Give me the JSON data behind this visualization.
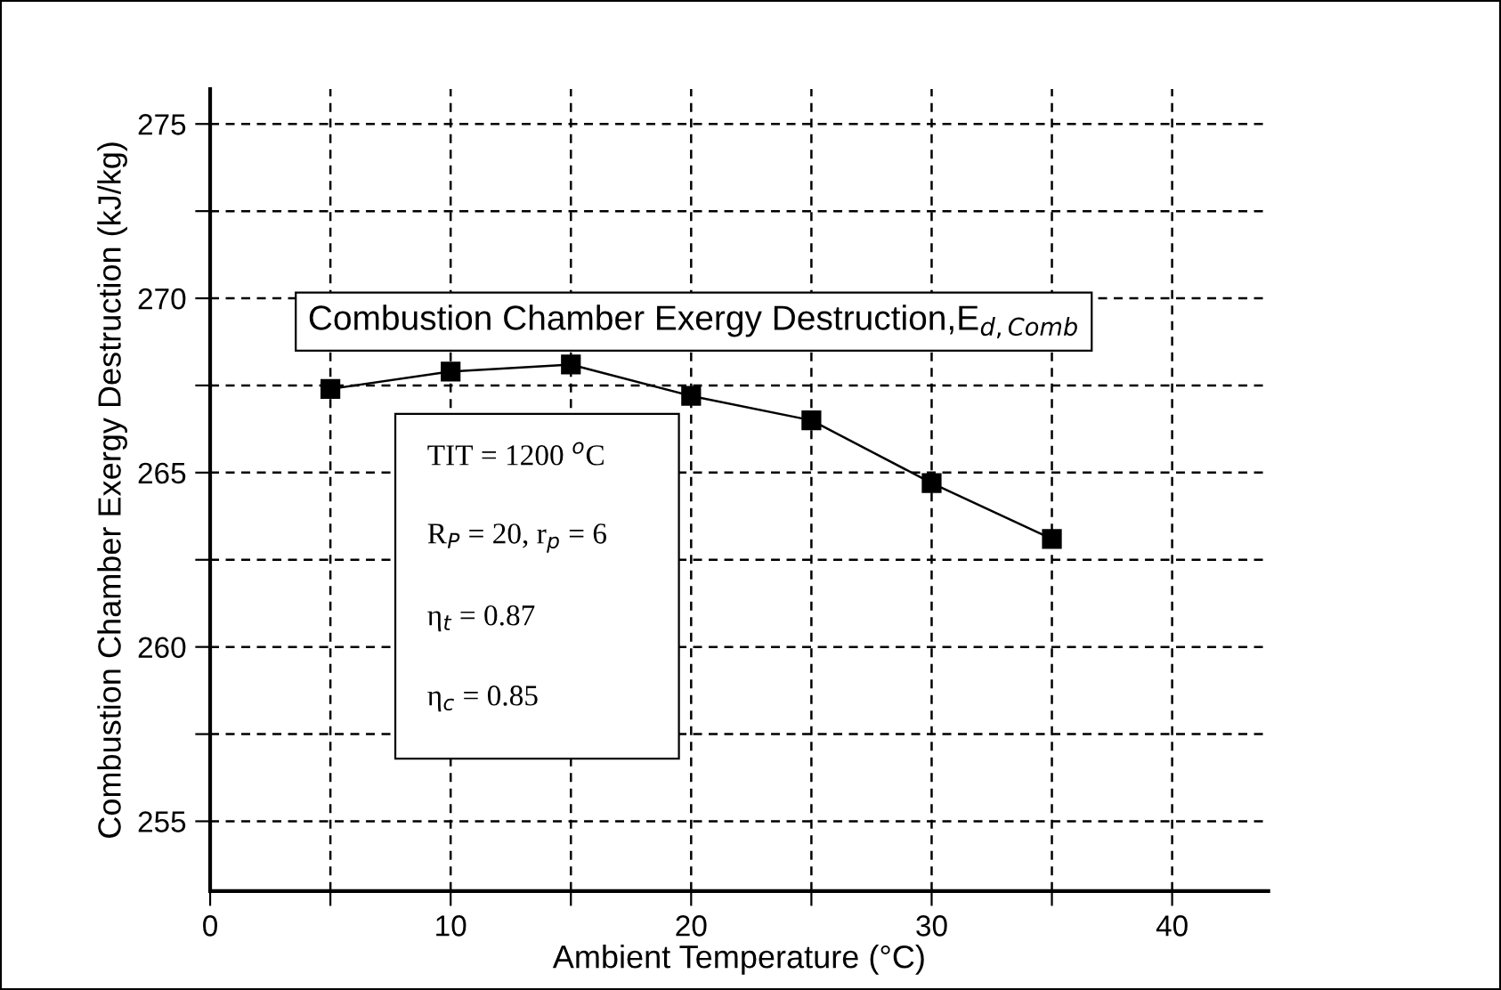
{
  "chart_data": {
    "type": "line",
    "xlabel": "Ambient Temperature (°C)",
    "ylabel": "Combustion Chamber Exergy Destruction (kJ/kg)",
    "x": [
      5,
      10,
      15,
      20,
      25,
      30,
      35
    ],
    "series": [
      {
        "color": "#000000",
        "values": [
          267.4,
          267.9,
          268.1,
          267.2,
          266.5,
          264.7,
          263.1
        ]
      }
    ],
    "marker": "square",
    "line_style": "solid",
    "xlim": [
      0,
      44
    ],
    "ylim": [
      253,
      276
    ],
    "xticks": [
      0,
      {
        "value": 5,
        "label": null
      },
      10,
      {
        "value": 15,
        "label": null
      },
      20,
      {
        "value": 25,
        "label": null
      },
      30,
      {
        "value": 35,
        "label": null
      },
      40
    ],
    "yticks": [
      255,
      {
        "value": 257.5,
        "label": null
      },
      260,
      {
        "value": 262.5,
        "label": null
      },
      265,
      {
        "value": 267.5,
        "label": null
      },
      270,
      {
        "value": 272.5,
        "label": null
      },
      275
    ],
    "grid": true,
    "annotations": [
      "Combustion Chamber Exergy Destruction,E$_{d,Comb}$",
      "TIT = 1200 $^{o}$C",
      "R$_{P}$ = 20, r$_{p}$ = 6",
      "η$_{t}$ = 0.87",
      "η$_{c}$ = 0.85"
    ]
  }
}
